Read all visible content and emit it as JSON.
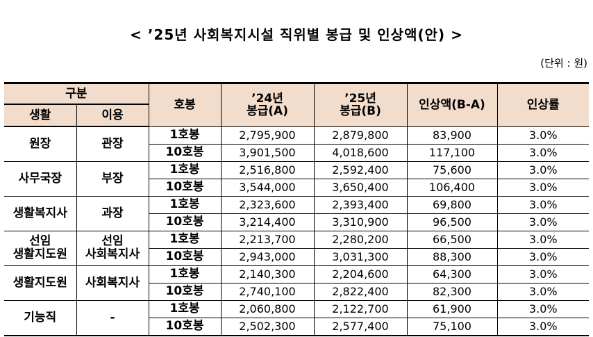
{
  "title": "< ’25년 사회복지시설 직위별 봉급 및 인상액(안) >",
  "unit": "(단위 : 원)",
  "header": {
    "gubun": "구분",
    "saenghwal": "생활",
    "iyong": "이용",
    "hobong": "호봉",
    "col_24": "’24년",
    "col_24_sub": "봉급(A)",
    "col_25": "’25년",
    "col_25_sub": "봉급(B)",
    "raise": "인상액(B-A)",
    "rate": "인상률"
  },
  "rows": [
    {
      "saenghwal": "원장",
      "iyong": "관장",
      "steps": [
        {
          "hobong": "1호봉",
          "y24": "2,795,900",
          "y25": "2,879,800",
          "raise": "83,900",
          "rate": "3.0%"
        },
        {
          "hobong": "10호봉",
          "y24": "3,901,500",
          "y25": "4,018,600",
          "raise": "117,100",
          "rate": "3.0%"
        }
      ]
    },
    {
      "saenghwal": "사무국장",
      "iyong": "부장",
      "steps": [
        {
          "hobong": "1호봉",
          "y24": "2,516,800",
          "y25": "2,592,400",
          "raise": "75,600",
          "rate": "3.0%"
        },
        {
          "hobong": "10호봉",
          "y24": "3,544,000",
          "y25": "3,650,400",
          "raise": "106,400",
          "rate": "3.0%"
        }
      ]
    },
    {
      "saenghwal": "생활복지사",
      "iyong": "과장",
      "steps": [
        {
          "hobong": "1호봉",
          "y24": "2,323,600",
          "y25": "2,393,400",
          "raise": "69,800",
          "rate": "3.0%"
        },
        {
          "hobong": "10호봉",
          "y24": "3,214,400",
          "y25": "3,310,900",
          "raise": "96,500",
          "rate": "3.0%"
        }
      ]
    },
    {
      "saenghwal": "선임\n생활지도원",
      "iyong": "선임\n사회복지사",
      "steps": [
        {
          "hobong": "1호봉",
          "y24": "2,213,700",
          "y25": "2,280,200",
          "raise": "66,500",
          "rate": "3.0%"
        },
        {
          "hobong": "10호봉",
          "y24": "2,943,000",
          "y25": "3,031,300",
          "raise": "88,300",
          "rate": "3.0%"
        }
      ]
    },
    {
      "saenghwal": "생활지도원",
      "iyong": "사회복지사",
      "steps": [
        {
          "hobong": "1호봉",
          "y24": "2,140,300",
          "y25": "2,204,600",
          "raise": "64,300",
          "rate": "3.0%"
        },
        {
          "hobong": "10호봉",
          "y24": "2,740,100",
          "y25": "2,822,400",
          "raise": "82,300",
          "rate": "3.0%"
        }
      ]
    },
    {
      "saenghwal": "기능직",
      "iyong": "-",
      "steps": [
        {
          "hobong": "1호봉",
          "y24": "2,060,800",
          "y25": "2,122,700",
          "raise": "61,900",
          "rate": "3.0%"
        },
        {
          "hobong": "10호봉",
          "y24": "2,502,300",
          "y25": "2,577,400",
          "raise": "75,100",
          "rate": "3.0%"
        }
      ]
    }
  ]
}
